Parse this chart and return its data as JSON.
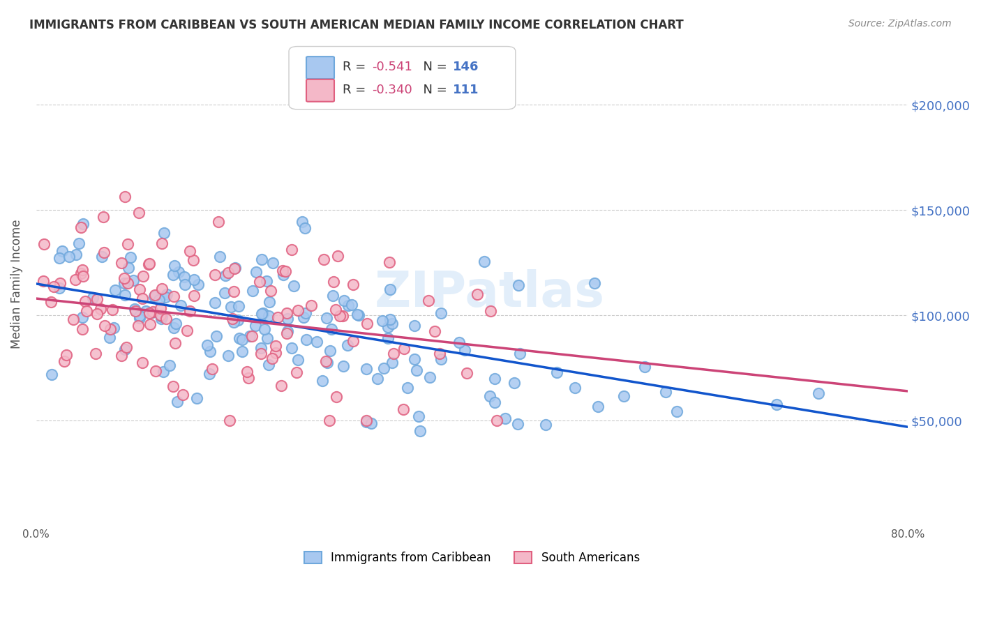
{
  "title": "IMMIGRANTS FROM CARIBBEAN VS SOUTH AMERICAN MEDIAN FAMILY INCOME CORRELATION CHART",
  "source": "Source: ZipAtlas.com",
  "xlabel_bottom": "",
  "ylabel": "Median Family Income",
  "xlim": [
    0.0,
    0.8
  ],
  "ylim": [
    0,
    230000
  ],
  "yticks": [
    50000,
    100000,
    150000,
    200000
  ],
  "xticks": [
    0.0,
    0.1,
    0.2,
    0.3,
    0.4,
    0.5,
    0.6,
    0.7,
    0.8
  ],
  "xtick_labels": [
    "0.0%",
    "",
    "",
    "",
    "",
    "",
    "",
    "",
    "80.0%"
  ],
  "ytick_labels": [
    "$50,000",
    "$100,000",
    "$150,000",
    "$200,000"
  ],
  "legend1_label": "R = -0.541   N = 146",
  "legend2_label": "R = -0.340   N = 111",
  "legend_bottom1": "Immigrants from Caribbean",
  "legend_bottom2": "South Americans",
  "color_blue": "#6fa8dc",
  "color_pink": "#ea9999",
  "color_blue_line": "#1155cc",
  "color_pink_line": "#cc4477",
  "color_title": "#333333",
  "color_axis_labels": "#4472c4",
  "watermark": "ZIPatlas",
  "blue_R": -0.541,
  "blue_N": 146,
  "pink_R": -0.34,
  "pink_N": 111,
  "blue_intercept": 115000,
  "blue_slope": -85000,
  "pink_intercept": 108000,
  "pink_slope": -55000,
  "grid_color": "#cccccc",
  "background_color": "#ffffff"
}
